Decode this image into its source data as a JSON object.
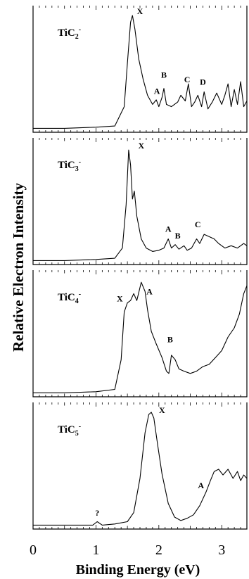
{
  "chart_data": {
    "type": "line",
    "xlabel": "Binding Energy (eV)",
    "ylabel": "Relative Electron Intensity",
    "xlim": [
      0,
      3.4
    ],
    "xticks": [
      0,
      1,
      2,
      3
    ],
    "grid": false,
    "panels": [
      {
        "species": "TiC",
        "subscript": "2",
        "charge": "-",
        "series": [
          {
            "x": [
              0,
              0.5,
              1.0,
              1.3,
              1.45,
              1.5,
              1.55,
              1.58,
              1.62,
              1.68,
              1.75,
              1.82,
              1.9,
              1.96,
              2.0,
              2.05,
              2.08,
              2.12,
              2.2,
              2.3,
              2.35,
              2.42,
              2.47,
              2.52,
              2.57,
              2.62,
              2.68,
              2.72,
              2.78,
              2.85,
              2.92,
              3.0,
              3.05,
              3.1,
              3.15,
              3.2,
              3.25,
              3.3,
              3.35,
              3.4
            ],
            "y": [
              0.01,
              0.01,
              0.02,
              0.03,
              0.2,
              0.58,
              0.94,
              1.0,
              0.88,
              0.62,
              0.44,
              0.3,
              0.22,
              0.26,
              0.2,
              0.28,
              0.36,
              0.22,
              0.2,
              0.24,
              0.3,
              0.25,
              0.4,
              0.2,
              0.24,
              0.3,
              0.2,
              0.33,
              0.18,
              0.24,
              0.32,
              0.22,
              0.3,
              0.4,
              0.2,
              0.35,
              0.22,
              0.42,
              0.2,
              0.25
            ]
          }
        ],
        "annotations": [
          {
            "text": "X",
            "x": 1.7,
            "y": 1.0
          },
          {
            "text": "A",
            "x": 1.97,
            "y": 0.3
          },
          {
            "text": "B",
            "x": 2.08,
            "y": 0.44
          },
          {
            "text": "C",
            "x": 2.45,
            "y": 0.4
          },
          {
            "text": "D",
            "x": 2.7,
            "y": 0.38
          }
        ]
      },
      {
        "species": "TiC",
        "subscript": "3",
        "charge": "-",
        "series": [
          {
            "x": [
              0,
              0.5,
              1.0,
              1.3,
              1.42,
              1.48,
              1.52,
              1.55,
              1.58,
              1.61,
              1.65,
              1.72,
              1.8,
              1.9,
              2.0,
              2.08,
              2.15,
              2.2,
              2.26,
              2.32,
              2.4,
              2.45,
              2.52,
              2.6,
              2.65,
              2.72,
              2.8,
              2.88,
              2.95,
              3.05,
              3.15,
              3.25,
              3.35,
              3.4
            ],
            "y": [
              0.01,
              0.01,
              0.02,
              0.03,
              0.12,
              0.5,
              0.98,
              0.85,
              0.55,
              0.62,
              0.4,
              0.2,
              0.12,
              0.09,
              0.1,
              0.12,
              0.2,
              0.12,
              0.15,
              0.11,
              0.14,
              0.1,
              0.12,
              0.2,
              0.16,
              0.24,
              0.22,
              0.2,
              0.16,
              0.12,
              0.14,
              0.12,
              0.16,
              0.14
            ]
          }
        ],
        "annotations": [
          {
            "text": "X",
            "x": 1.72,
            "y": 0.98
          },
          {
            "text": "A",
            "x": 2.15,
            "y": 0.25
          },
          {
            "text": "B",
            "x": 2.3,
            "y": 0.19
          },
          {
            "text": "C",
            "x": 2.62,
            "y": 0.29
          }
        ]
      },
      {
        "species": "TiC",
        "subscript": "4",
        "charge": "-",
        "series": [
          {
            "x": [
              0,
              0.5,
              1.0,
              1.3,
              1.4,
              1.45,
              1.5,
              1.55,
              1.6,
              1.65,
              1.72,
              1.78,
              1.82,
              1.88,
              1.95,
              2.05,
              2.12,
              2.16,
              2.2,
              2.26,
              2.32,
              2.4,
              2.5,
              2.6,
              2.7,
              2.8,
              2.9,
              3.0,
              3.1,
              3.2,
              3.28,
              3.35,
              3.4
            ],
            "y": [
              0.01,
              0.01,
              0.02,
              0.04,
              0.3,
              0.72,
              0.8,
              0.82,
              0.88,
              0.82,
              0.98,
              0.9,
              0.74,
              0.55,
              0.45,
              0.32,
              0.2,
              0.18,
              0.34,
              0.3,
              0.22,
              0.2,
              0.18,
              0.2,
              0.24,
              0.26,
              0.32,
              0.38,
              0.5,
              0.58,
              0.7,
              0.88,
              0.95
            ]
          }
        ],
        "annotations": [
          {
            "text": "X",
            "x": 1.38,
            "y": 0.8
          },
          {
            "text": "A",
            "x": 1.85,
            "y": 0.86
          },
          {
            "text": "B",
            "x": 2.18,
            "y": 0.44
          }
        ]
      },
      {
        "species": "TiC",
        "subscript": "5",
        "charge": "-",
        "series": [
          {
            "x": [
              0,
              0.5,
              0.95,
              1.02,
              1.1,
              1.3,
              1.5,
              1.6,
              1.7,
              1.78,
              1.84,
              1.88,
              1.92,
              1.98,
              2.05,
              2.15,
              2.25,
              2.35,
              2.45,
              2.55,
              2.65,
              2.75,
              2.82,
              2.88,
              2.95,
              3.02,
              3.1,
              3.18,
              3.25,
              3.3,
              3.35,
              3.4
            ],
            "y": [
              0.01,
              0.01,
              0.01,
              0.04,
              0.01,
              0.02,
              0.04,
              0.12,
              0.42,
              0.82,
              0.98,
              1.0,
              0.95,
              0.72,
              0.46,
              0.2,
              0.08,
              0.05,
              0.07,
              0.1,
              0.18,
              0.3,
              0.4,
              0.48,
              0.5,
              0.45,
              0.5,
              0.42,
              0.48,
              0.4,
              0.45,
              0.42
            ]
          }
        ],
        "annotations": [
          {
            "text": "X",
            "x": 2.05,
            "y": 0.98
          },
          {
            "text": "A",
            "x": 2.67,
            "y": 0.32
          },
          {
            "text": "?",
            "x": 1.02,
            "y": 0.08
          }
        ]
      }
    ]
  }
}
